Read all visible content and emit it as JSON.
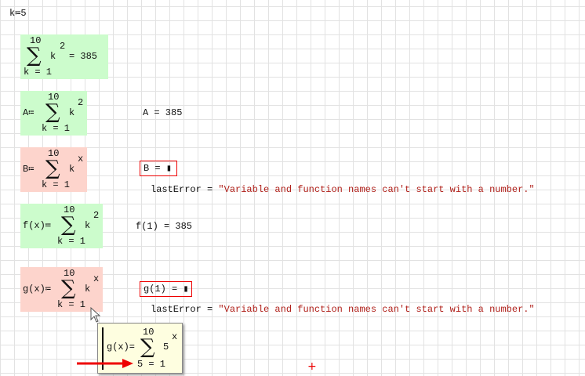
{
  "k_def": "k≔5",
  "r1": {
    "top": "10",
    "bottom": "k = 1",
    "term": "k",
    "exp": "2",
    "result": "= 385"
  },
  "r2": {
    "lhs": "A≔",
    "top": "10",
    "bottom": "k = 1",
    "term": "k",
    "exp": "2",
    "eval": "A = 385"
  },
  "r3": {
    "lhs": "B≔",
    "top": "10",
    "bottom": "k = 1",
    "term": "k",
    "exp": "x",
    "eval": "B = ▮",
    "error": "lastError = ",
    "error_msg": "\"Variable and function names can't start with a number.\""
  },
  "r4": {
    "lhs": "f(x)≔",
    "top": "10",
    "bottom": "k = 1",
    "term": "k",
    "exp": "2",
    "eval": "f(1) = 385"
  },
  "r5": {
    "lhs": "g(x)≔",
    "top": "10",
    "bottom": "k = 1",
    "term": "k",
    "exp": "x",
    "eval": "g(1) = ▮",
    "error": "lastError = ",
    "error_msg": "\"Variable and function names can't start with a number.\""
  },
  "tooltip": {
    "lhs": "g(x)=",
    "top": "10",
    "bottom": "5 = 1",
    "term": "5",
    "exp": "x"
  },
  "colors": {
    "ok": "#ccfccc",
    "error": "#fdd4cc",
    "error_border": "#e00000",
    "arrow": "#e00000"
  }
}
